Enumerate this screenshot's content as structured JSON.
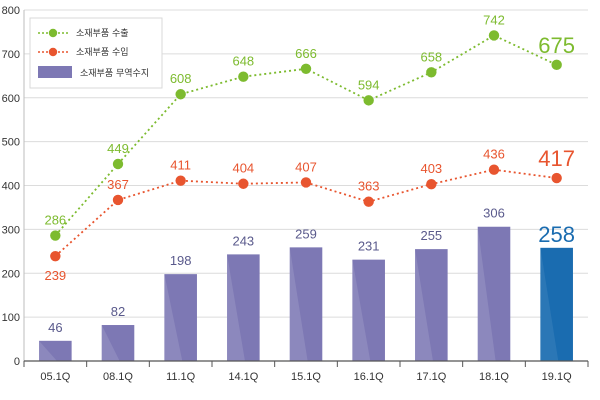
{
  "chart_data": {
    "type": "bar",
    "categories": [
      "05.1Q",
      "08.1Q",
      "11.1Q",
      "14.1Q",
      "15.1Q",
      "16.1Q",
      "17.1Q",
      "18.1Q",
      "19.1Q"
    ],
    "ylim": [
      0,
      800
    ],
    "yticks": [
      0,
      100,
      200,
      300,
      400,
      500,
      600,
      700,
      800
    ],
    "grid": true,
    "legend_position": "top-left",
    "series": [
      {
        "name": "소재부품 수출",
        "type": "line",
        "style": "dotted",
        "color": "#7dbb2f",
        "values": [
          286,
          449,
          608,
          648,
          666,
          594,
          658,
          742,
          675
        ],
        "labels": [
          "286",
          "449",
          "608",
          "648",
          "666",
          "594",
          "658",
          "742",
          "675"
        ]
      },
      {
        "name": "소재부품 수입",
        "type": "line",
        "style": "dotted",
        "color": "#e8552f",
        "values": [
          239,
          367,
          411,
          404,
          407,
          363,
          403,
          436,
          417
        ],
        "labels": [
          "239",
          "367",
          "411",
          "404",
          "407",
          "363",
          "403",
          "436",
          "417"
        ]
      },
      {
        "name": "소재부품 무역수지",
        "type": "bar",
        "color": "#7d78b4",
        "highlight_color": "#1a6cb0",
        "values": [
          46,
          82,
          198,
          243,
          259,
          231,
          255,
          306,
          258
        ],
        "labels": [
          "46",
          "82",
          "198",
          "243",
          "259",
          "231",
          "255",
          "306",
          "258"
        ]
      }
    ]
  }
}
